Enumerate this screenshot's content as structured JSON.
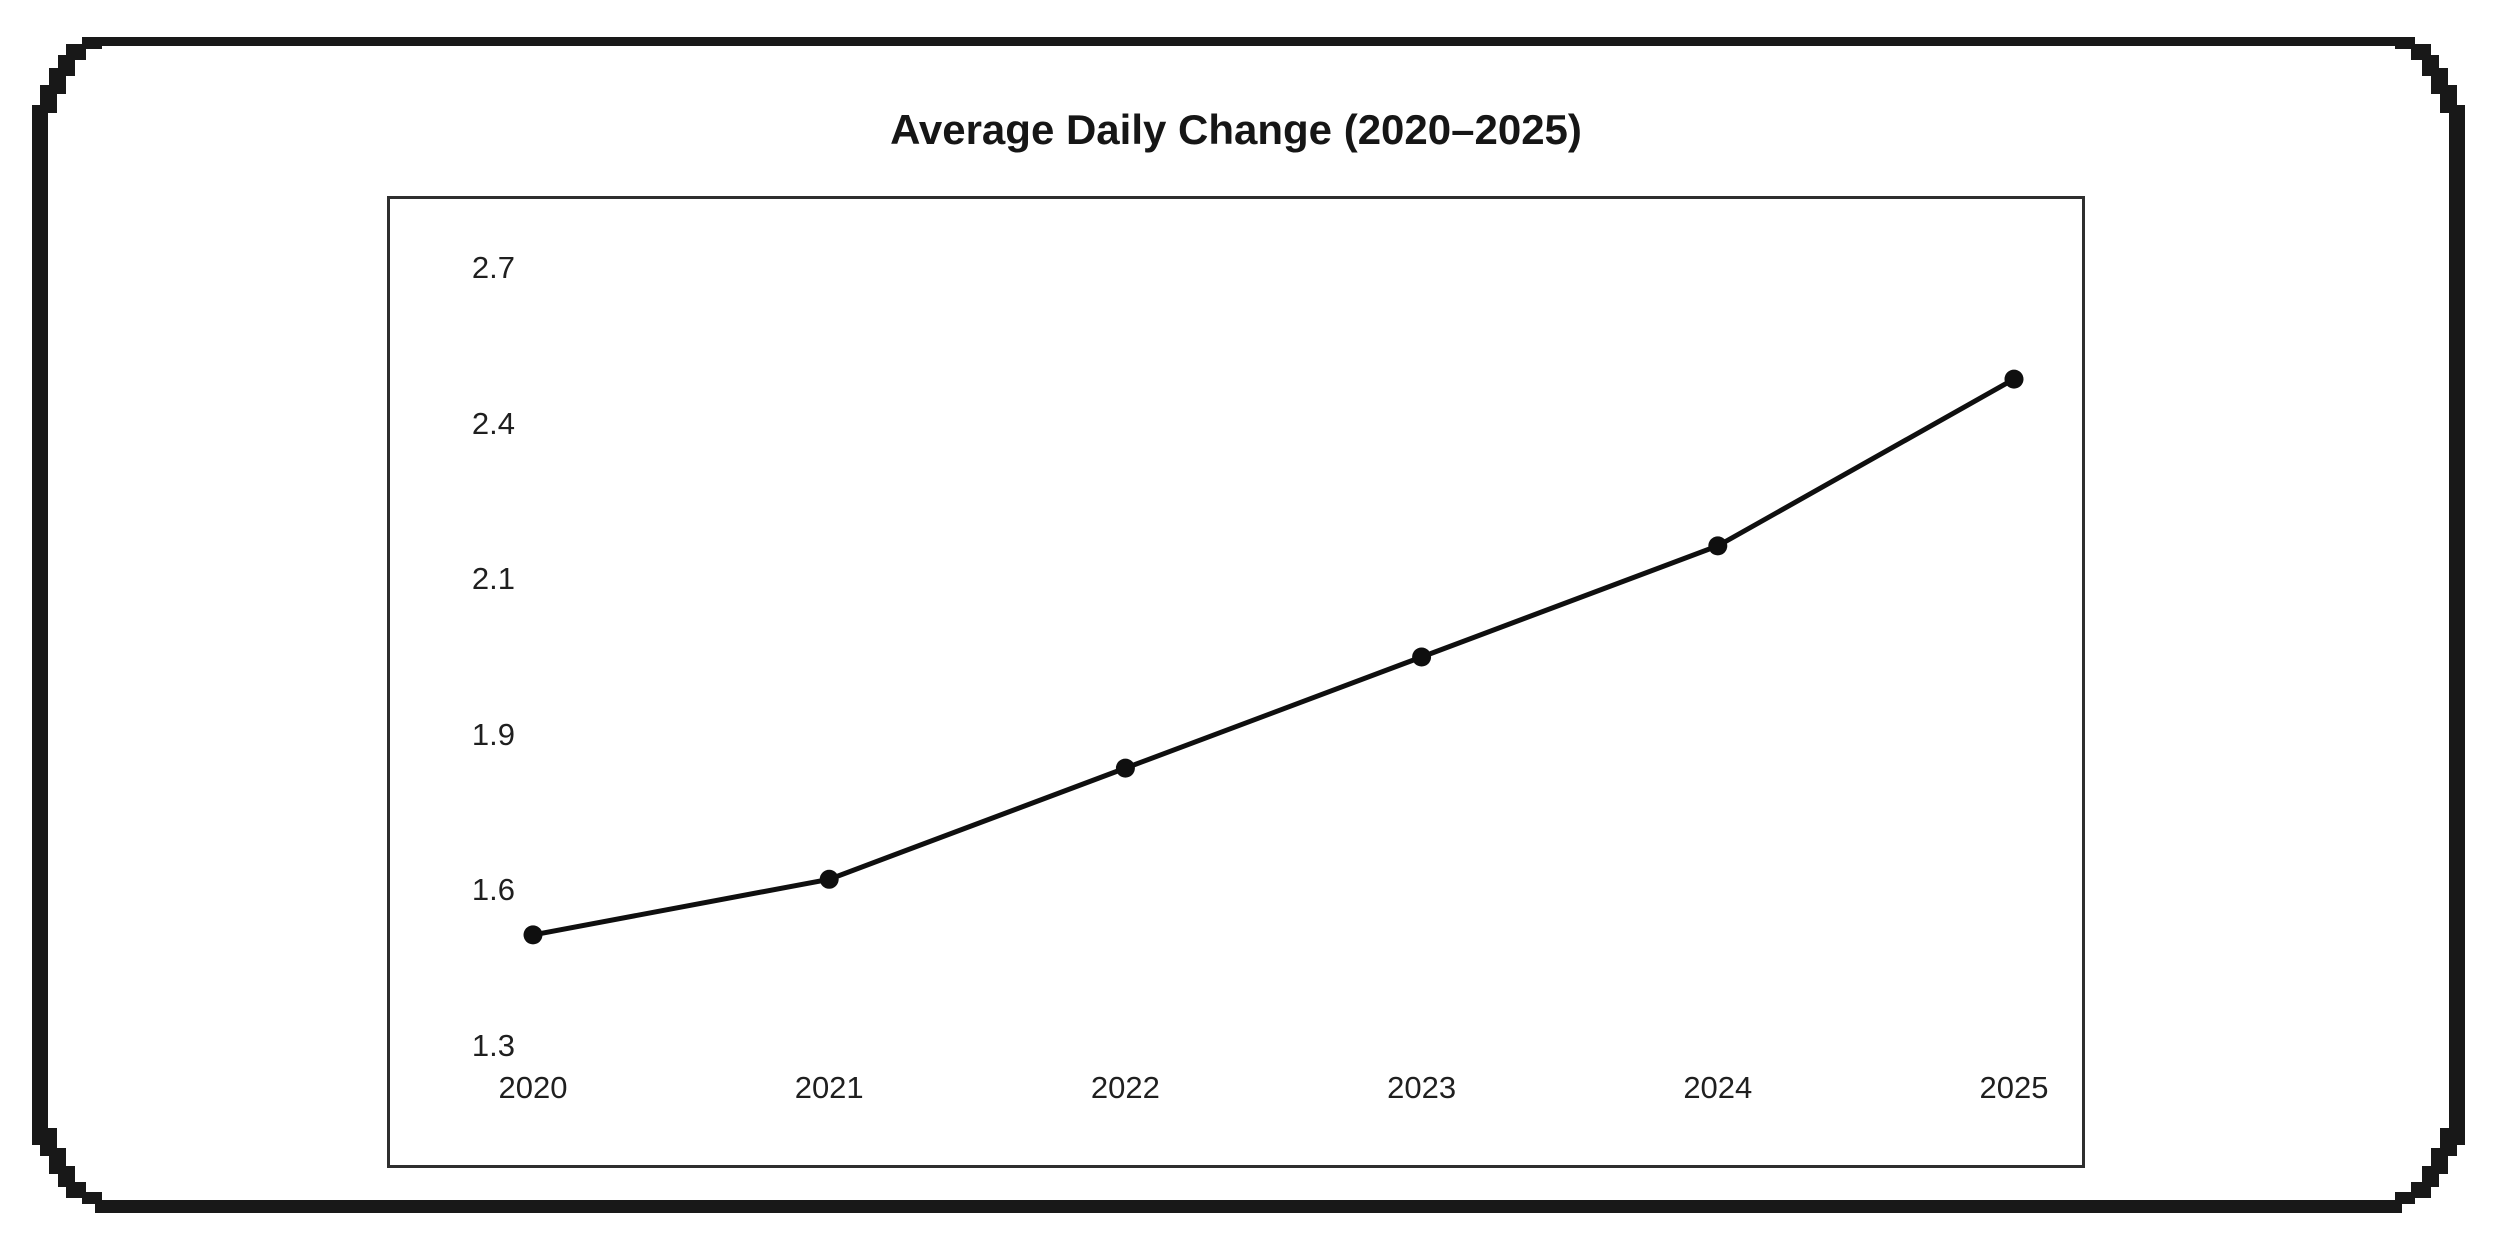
{
  "title": "Average Daily Change (2020–2025)",
  "chart_data": {
    "type": "line",
    "title": "Average Daily Change (2020–2025)",
    "x": [
      "2020",
      "2021",
      "2022",
      "2023",
      "2024",
      "2025"
    ],
    "values": [
      1.5,
      1.6,
      1.8,
      2.0,
      2.2,
      2.5
    ],
    "xlabel": "",
    "ylabel": "",
    "ylim": [
      1.3,
      2.7
    ],
    "y_ticks": [
      "1.3",
      "1.6",
      "1.9",
      "2.1",
      "2.4",
      "2.7"
    ],
    "grid": false,
    "legend": "none",
    "line_color": "#0f0f0f",
    "marker": "circle",
    "marker_color": "#0f0f0f"
  },
  "colors": {
    "background": "#ffffff",
    "frame": "#181818",
    "plot_border": "#2f2f2f",
    "text": "#1f1f1f"
  }
}
